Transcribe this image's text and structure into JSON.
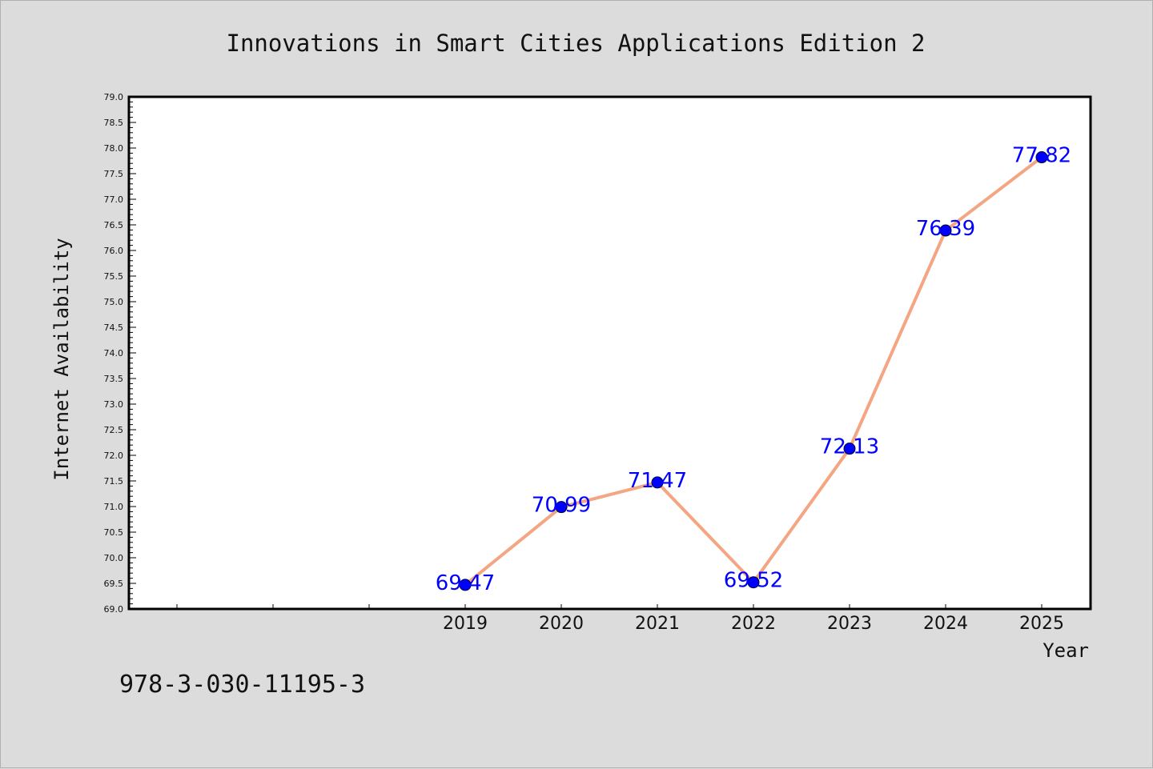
{
  "isbn": "978-3-030-11195-3",
  "chart_data": {
    "type": "line",
    "title": "Innovations in Smart Cities Applications Edition 2",
    "xlabel": "Year",
    "ylabel": "Internet Availability",
    "x": [
      "2019",
      "2020",
      "2021",
      "2022",
      "2023",
      "2024",
      "2025"
    ],
    "series": [
      {
        "values": [
          69.47,
          70.99,
          71.47,
          69.52,
          72.13,
          76.39,
          77.82
        ],
        "labels": [
          "69.47",
          "70.99",
          "71.47",
          "69.52",
          "72.13",
          "76.39",
          "77.82"
        ]
      }
    ],
    "ylim": [
      69.0,
      79.0
    ],
    "yticks": [
      "69.0",
      "69.5",
      "70.0",
      "70.5",
      "71.0",
      "71.5",
      "72.0",
      "72.5",
      "73.0",
      "73.5",
      "74.0",
      "74.5",
      "75.0",
      "75.5",
      "76.0",
      "76.5",
      "77.0",
      "77.5",
      "78.0",
      "78.5",
      "79.0"
    ],
    "grid": false,
    "line_color": "#f4a582",
    "marker_color": "#0000ff",
    "label_color": "#0000ff"
  }
}
